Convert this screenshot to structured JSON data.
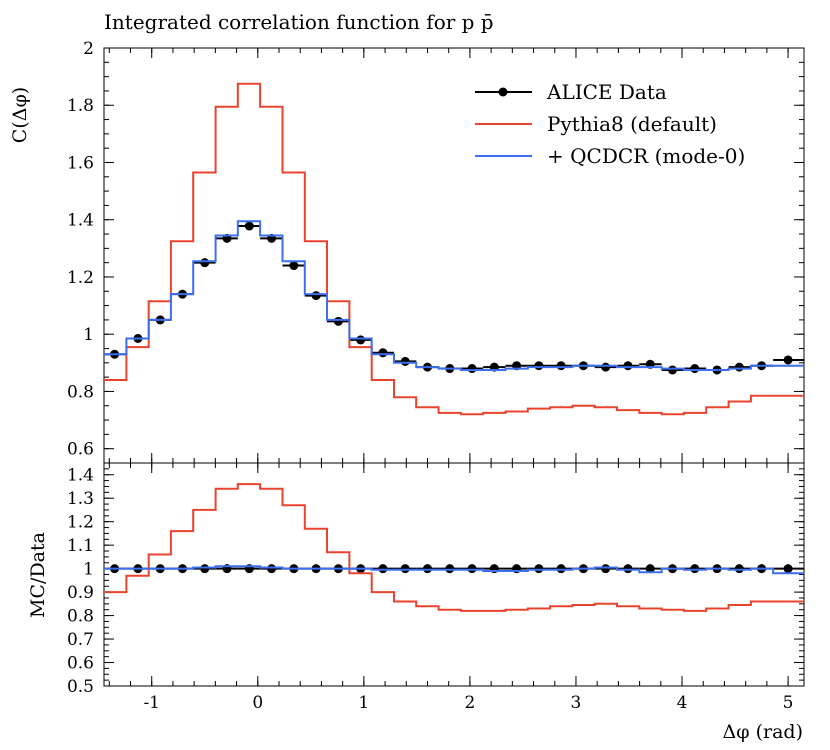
{
  "title": "Integrated correlation function for p p̄",
  "colors": {
    "data": "#000000",
    "pythia": "#e8432d",
    "qcdcr": "#3b6ff0"
  },
  "chart_data": [
    {
      "panel": "main",
      "type": "line",
      "ylabel": "C(Δφ)",
      "ylim": [
        0.55,
        2.0
      ],
      "xlim": [
        -1.45,
        5.15
      ],
      "yticks": [
        "0.6",
        "0.8",
        "1",
        "1.2",
        "1.4",
        "1.6",
        "1.8",
        "2"
      ],
      "grid": false,
      "legend_position": "top-right",
      "legend": [
        "ALICE Data",
        "Pythia8 (default)",
        "+ QCDCR (mode-0)"
      ],
      "bin_edges": [
        -1.45,
        -1.239,
        -1.029,
        -0.819,
        -0.609,
        -0.398,
        -0.188,
        0.022,
        0.233,
        0.443,
        0.653,
        0.864,
        1.074,
        1.284,
        1.494,
        1.705,
        1.915,
        2.125,
        2.336,
        2.546,
        2.756,
        2.967,
        3.177,
        3.387,
        3.597,
        3.808,
        4.018,
        4.228,
        4.439,
        4.649,
        4.859,
        5.15
      ],
      "series": [
        {
          "name": "ALICE Data",
          "style": "points",
          "x": [
            -1.35,
            -1.13,
            -0.92,
            -0.71,
            -0.5,
            -0.29,
            -0.08,
            0.13,
            0.34,
            0.55,
            0.76,
            0.97,
            1.18,
            1.39,
            1.6,
            1.81,
            2.02,
            2.23,
            2.44,
            2.65,
            2.86,
            3.07,
            3.28,
            3.49,
            3.7,
            3.91,
            4.12,
            4.33,
            4.54,
            4.75,
            5.0
          ],
          "values": [
            0.93,
            0.985,
            1.05,
            1.14,
            1.25,
            1.335,
            1.378,
            1.335,
            1.24,
            1.135,
            1.045,
            0.98,
            0.935,
            0.905,
            0.885,
            0.88,
            0.88,
            0.885,
            0.89,
            0.89,
            0.89,
            0.89,
            0.885,
            0.89,
            0.895,
            0.875,
            0.88,
            0.875,
            0.885,
            0.89,
            0.91
          ]
        },
        {
          "name": "Pythia8 (default)",
          "style": "step",
          "values": [
            0.84,
            0.955,
            1.115,
            1.325,
            1.565,
            1.795,
            1.875,
            1.795,
            1.565,
            1.325,
            1.115,
            0.955,
            0.84,
            0.78,
            0.745,
            0.725,
            0.72,
            0.725,
            0.73,
            0.74,
            0.745,
            0.75,
            0.745,
            0.735,
            0.725,
            0.72,
            0.725,
            0.745,
            0.765,
            0.785,
            0.785
          ]
        },
        {
          "name": "+ QCDCR (mode-0)",
          "style": "step",
          "values": [
            0.93,
            0.985,
            1.05,
            1.14,
            1.255,
            1.345,
            1.395,
            1.345,
            1.255,
            1.14,
            1.05,
            0.985,
            0.93,
            0.9,
            0.885,
            0.88,
            0.875,
            0.875,
            0.88,
            0.885,
            0.885,
            0.89,
            0.89,
            0.885,
            0.885,
            0.88,
            0.875,
            0.875,
            0.88,
            0.89,
            0.89
          ]
        }
      ]
    },
    {
      "panel": "ratio",
      "type": "line",
      "ylabel": "MC/Data",
      "xlabel": "Δφ (rad)",
      "ylim": [
        0.5,
        1.45
      ],
      "xlim": [
        -1.45,
        5.15
      ],
      "yticks": [
        "0.5",
        "0.6",
        "0.7",
        "0.8",
        "0.9",
        "1",
        "1.1",
        "1.2",
        "1.3",
        "1.4"
      ],
      "xticks": [
        "-1",
        "0",
        "1",
        "2",
        "3",
        "4",
        "5"
      ],
      "series": [
        {
          "name": "ALICE Data",
          "style": "points",
          "values": [
            1,
            1,
            1,
            1,
            1,
            1,
            1,
            1,
            1,
            1,
            1,
            1,
            1,
            1,
            1,
            1,
            1,
            1,
            1,
            1,
            1,
            1,
            1,
            1,
            1,
            1,
            1,
            1,
            1,
            1,
            1
          ]
        },
        {
          "name": "Pythia8 (default)",
          "style": "step",
          "values": [
            0.9,
            0.97,
            1.06,
            1.16,
            1.25,
            1.34,
            1.36,
            1.34,
            1.27,
            1.17,
            1.07,
            0.98,
            0.9,
            0.86,
            0.84,
            0.825,
            0.82,
            0.82,
            0.825,
            0.83,
            0.84,
            0.845,
            0.85,
            0.84,
            0.83,
            0.825,
            0.82,
            0.83,
            0.845,
            0.86,
            0.86
          ]
        },
        {
          "name": "+ QCDCR (mode-0)",
          "style": "step",
          "values": [
            1.0,
            1.0,
            1.0,
            1.0,
            1.005,
            1.01,
            1.01,
            1.005,
            1.0,
            1.0,
            1.0,
            1.0,
            0.995,
            0.995,
            0.995,
            0.995,
            0.995,
            0.99,
            0.99,
            0.995,
            0.995,
            1.0,
            1.005,
            0.995,
            0.985,
            1.0,
            0.995,
            1.0,
            0.995,
            1.0,
            0.98
          ]
        }
      ]
    }
  ]
}
